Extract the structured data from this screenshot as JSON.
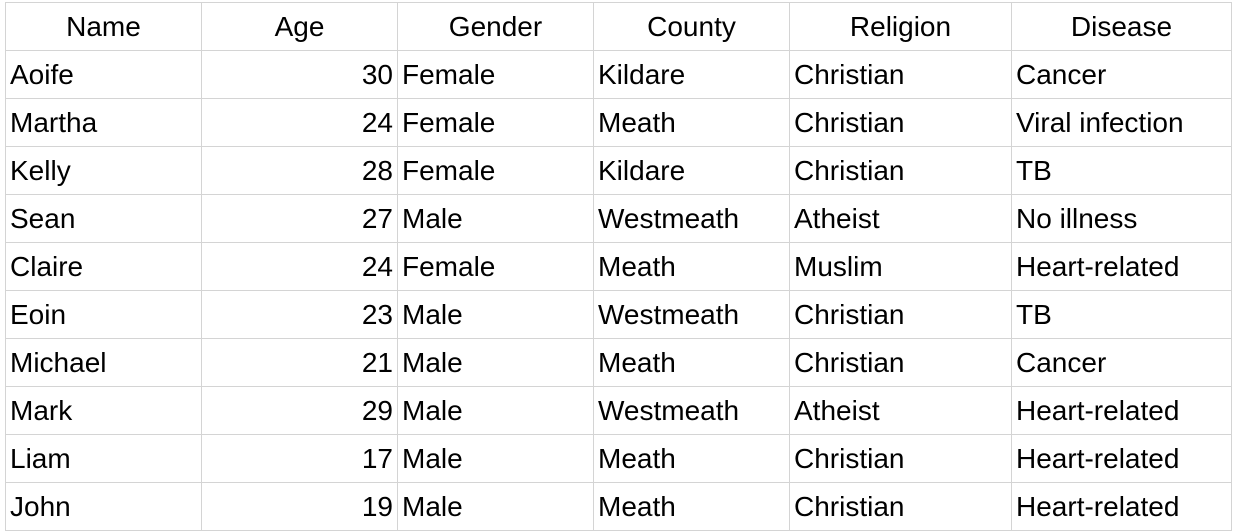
{
  "sheet": {
    "headers": [
      "Name",
      "Age",
      "Gender",
      "County",
      "Religion",
      "Disease"
    ],
    "rows": [
      [
        "Aoife",
        "30",
        "Female",
        "Kildare",
        "Christian",
        "Cancer"
      ],
      [
        "Martha",
        "24",
        "Female",
        "Meath",
        "Christian",
        "Viral infection"
      ],
      [
        "Kelly",
        "28",
        "Female",
        "Kildare",
        "Christian",
        "TB"
      ],
      [
        "Sean",
        "27",
        "Male",
        "Westmeath",
        "Atheist",
        "No illness"
      ],
      [
        "Claire",
        "24",
        "Female",
        "Meath",
        "Muslim",
        "Heart-related"
      ],
      [
        "Eoin",
        "23",
        "Male",
        "Westmeath",
        "Christian",
        "TB"
      ],
      [
        "Michael",
        "21",
        "Male",
        "Meath",
        "Christian",
        "Cancer"
      ],
      [
        "Mark",
        "29",
        "Male",
        "Westmeath",
        "Atheist",
        "Heart-related"
      ],
      [
        "Liam",
        "17",
        "Male",
        "Meath",
        "Christian",
        "Heart-related"
      ],
      [
        "John",
        "19",
        "Male",
        "Meath",
        "Christian",
        "Heart-related"
      ]
    ]
  },
  "colors": {
    "gridline": "#d4d4d4",
    "text": "#000000",
    "background": "#ffffff"
  }
}
